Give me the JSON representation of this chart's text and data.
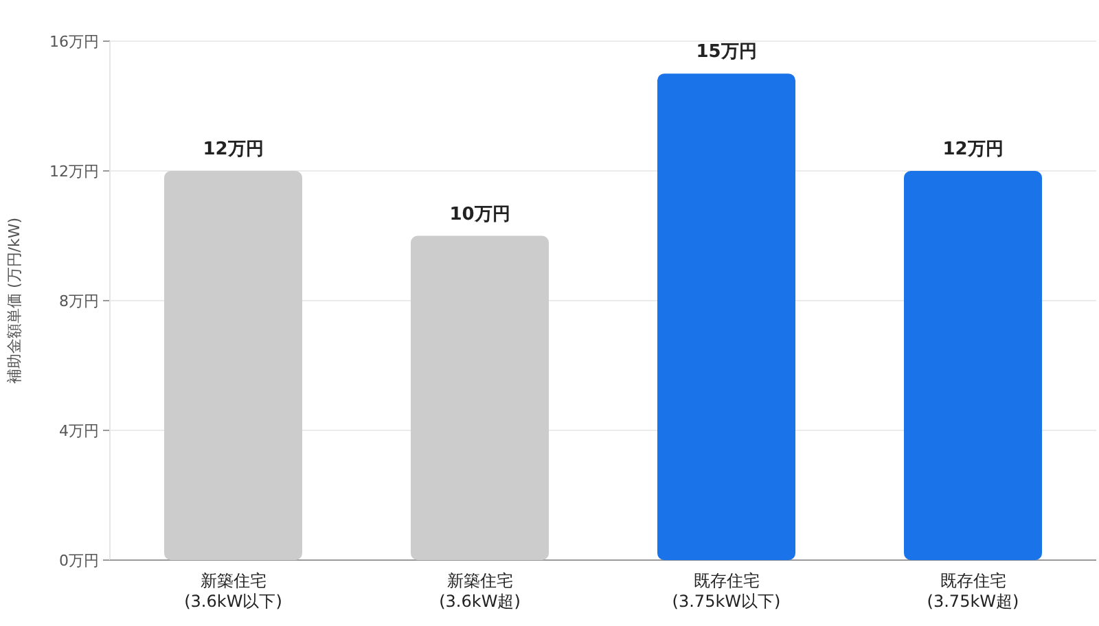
{
  "chart_data": {
    "type": "bar",
    "ylabel": "補助金額単価 (万円/kW)",
    "categories": [
      "新築住宅\n(3.6kW以下)",
      "新築住宅\n(3.6kW超)",
      "既存住宅\n(3.75kW以下)",
      "既存住宅\n(3.75kW超)"
    ],
    "values": [
      12,
      10,
      15,
      12
    ],
    "colors": [
      "#cccccc",
      "#cccccc",
      "#1a73e8",
      "#1a73e8"
    ],
    "value_labels": [
      "12万円",
      "10万円",
      "15万円",
      "12万円"
    ],
    "ylim": [
      0,
      16
    ],
    "yticks": [
      {
        "value": 0,
        "label": "0万円"
      },
      {
        "value": 4,
        "label": "4万円"
      },
      {
        "value": 8,
        "label": "8万円"
      },
      {
        "value": 12,
        "label": "12万円"
      },
      {
        "value": 16,
        "label": "16万円"
      }
    ],
    "grid": "y"
  }
}
